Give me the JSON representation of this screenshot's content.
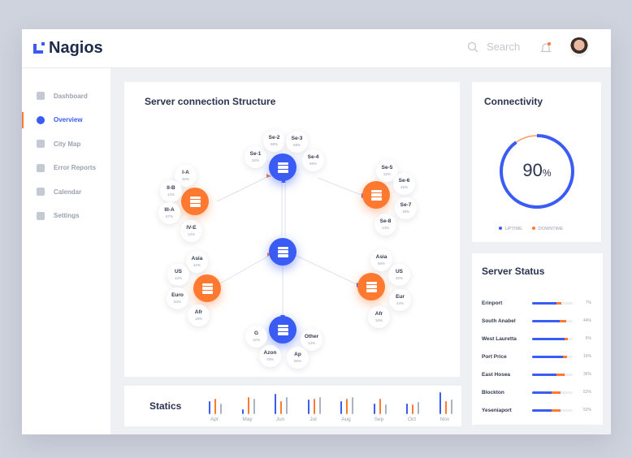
{
  "header": {
    "app_name": "Nagios",
    "search_placeholder": "Search"
  },
  "sidebar": {
    "items": [
      {
        "label": "Dashboard",
        "icon": "home-icon"
      },
      {
        "label": "Overview",
        "icon": "compass-icon",
        "active": true
      },
      {
        "label": "City Map",
        "icon": "map-pin-icon"
      },
      {
        "label": "Error Reports",
        "icon": "cloud-icon"
      },
      {
        "label": "Calendar",
        "icon": "calendar-icon"
      },
      {
        "label": "Settings",
        "icon": "gear-icon"
      }
    ]
  },
  "structure": {
    "title": "Server connection Structure",
    "groups": [
      {
        "nodes": [
          {
            "n": "Se-1",
            "p": "10%"
          },
          {
            "n": "Se-2",
            "p": "58%"
          },
          {
            "n": "Se-3",
            "p": "58%"
          },
          {
            "n": "Se-4",
            "p": "56%"
          }
        ]
      },
      {
        "nodes": [
          {
            "n": "I-A",
            "p": "32%"
          },
          {
            "n": "II-B",
            "p": "12%"
          },
          {
            "n": "III-A",
            "p": "67%"
          },
          {
            "n": "IV-E",
            "p": "12%"
          }
        ]
      },
      {
        "nodes": [
          {
            "n": "Se-5",
            "p": "32%"
          },
          {
            "n": "Se-6",
            "p": "45%"
          },
          {
            "n": "Se-7",
            "p": "18%"
          },
          {
            "n": "Se-8",
            "p": "13%"
          }
        ]
      },
      {
        "nodes": [
          {
            "n": "Asia",
            "p": "42%"
          },
          {
            "n": "US",
            "p": "12%"
          },
          {
            "n": "Euro",
            "p": "54%"
          },
          {
            "n": "Afr",
            "p": "16%"
          }
        ]
      },
      {
        "nodes": [
          {
            "n": "Asia",
            "p": "56%"
          },
          {
            "n": "US",
            "p": "32%"
          },
          {
            "n": "Eur",
            "p": "24%"
          },
          {
            "n": "Afr",
            "p": "16%"
          }
        ]
      },
      {
        "nodes": [
          {
            "n": "G",
            "p": "12%"
          },
          {
            "n": "Other",
            "p": "14%"
          },
          {
            "n": "Azon",
            "p": "78%"
          },
          {
            "n": "Ap",
            "p": "56%"
          }
        ]
      }
    ]
  },
  "connectivity": {
    "title": "Connectivity",
    "value": "90",
    "unit": "%",
    "uptime_fraction": 0.9,
    "legend": [
      "UPTIME",
      "DOWNTIME"
    ]
  },
  "server_status": {
    "title": "Server Status",
    "rows": [
      {
        "name": "Erinport",
        "blue": 0.6,
        "orange": 0.12,
        "pct": "7%"
      },
      {
        "name": "South Anabel",
        "blue": 0.68,
        "orange": 0.15,
        "pct": "44%"
      },
      {
        "name": "West Lauretta",
        "blue": 0.8,
        "orange": 0.08,
        "pct": "6%"
      },
      {
        "name": "Port Price",
        "blue": 0.76,
        "orange": 0.1,
        "pct": "16%"
      },
      {
        "name": "East Hosea",
        "blue": 0.6,
        "orange": 0.2,
        "pct": "36%"
      },
      {
        "name": "Blockton",
        "blue": 0.48,
        "orange": 0.22,
        "pct": "52%"
      },
      {
        "name": "Yeseniaport",
        "blue": 0.48,
        "orange": 0.22,
        "pct": "52%"
      }
    ]
  },
  "statics": {
    "title": "Statics",
    "months": [
      "Apr",
      "May",
      "Jun",
      "Jul",
      "Aug",
      "Sep",
      "Oct",
      "Nov"
    ],
    "series": {
      "blue": [
        16,
        6,
        25,
        18,
        16,
        13,
        13,
        27
      ],
      "orange": [
        19,
        21,
        16,
        19,
        19,
        19,
        12,
        16
      ],
      "gray": [
        13,
        19,
        21,
        21,
        21,
        12,
        15,
        18
      ]
    }
  },
  "colors": {
    "blue": "#3a5cf5",
    "orange": "#ff7a30",
    "gray": "#a9b3c4"
  }
}
